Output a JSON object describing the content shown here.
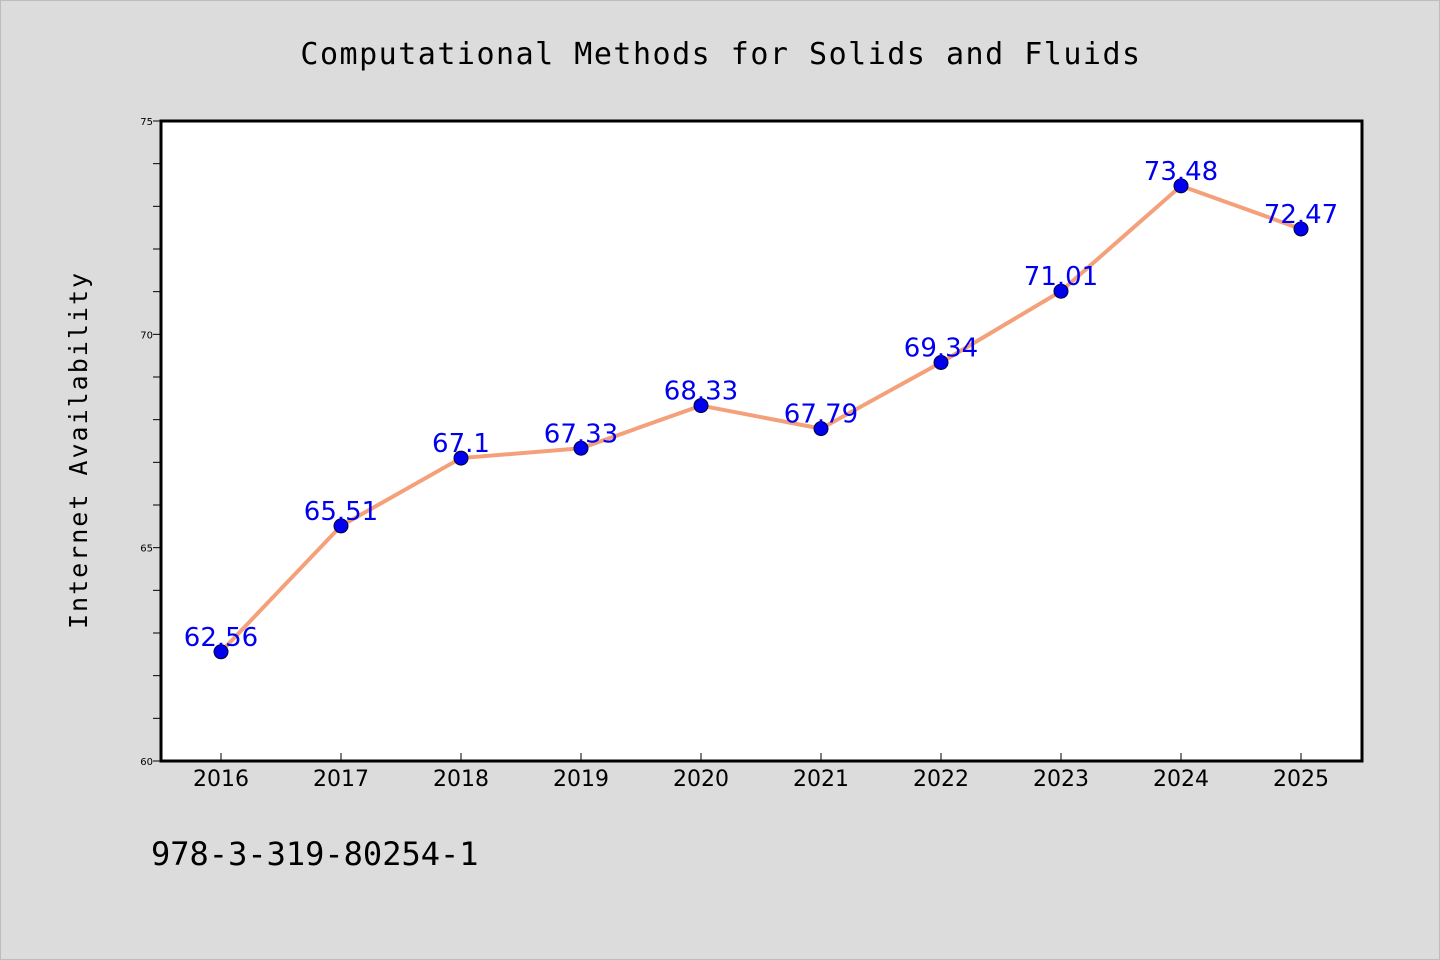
{
  "chart_data": {
    "type": "line",
    "title": "Computational Methods for Solids and Fluids",
    "xlabel": "",
    "ylabel": "Internet Availability",
    "categories": [
      "2016",
      "2017",
      "2018",
      "2019",
      "2020",
      "2021",
      "2022",
      "2023",
      "2024",
      "2025"
    ],
    "series": [
      {
        "values": [
          62.56,
          65.51,
          67.1,
          67.33,
          68.33,
          67.79,
          69.34,
          71.01,
          73.48,
          72.47
        ],
        "data_labels": [
          "62.56",
          "65.51",
          "67.1",
          "67.33",
          "68.33",
          "67.79",
          "69.34",
          "71.01",
          "73.48",
          "72.47"
        ]
      }
    ],
    "ylim": [
      60,
      75
    ],
    "y_ticks": [
      "60",
      "65",
      "70",
      "75"
    ],
    "y_minor_step": 1,
    "grid": false,
    "legend": "none",
    "colors": {
      "line": "#f4a07a",
      "marker": "#0000ee",
      "data_label": "#0000ee",
      "axes": "#000000",
      "background": "#dcdcdc",
      "plot_background": "#ffffff"
    }
  },
  "footer_note": "978-3-319-80254-1"
}
